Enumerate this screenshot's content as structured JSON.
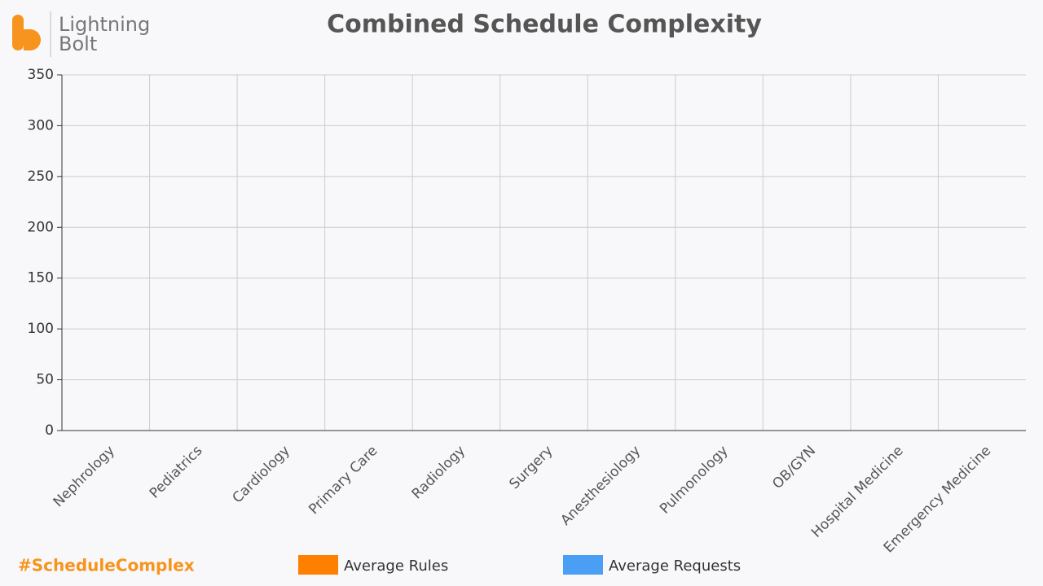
{
  "chart_data": {
    "type": "bar",
    "title": "Combined Schedule Complexity",
    "logo_lines": [
      "Lightning",
      "Bolt"
    ],
    "annotation": "#ScheduleComplex",
    "categories": [
      "Nephrology",
      "Pediatrics",
      "Cardiology",
      "Primary Care",
      "Radiology",
      "Surgery",
      "Anesthesiology",
      "Pulmonology",
      "OB/GYN",
      "Hospital Medicine",
      "Emergency Medicine"
    ],
    "series": [
      {
        "name": "Average Rules",
        "color": "#ff8000",
        "values": [
          0,
          0,
          0,
          0,
          0,
          0,
          0,
          0,
          0,
          0,
          0
        ]
      },
      {
        "name": "Average Requests",
        "color": "#4a9ff5",
        "values": [
          0,
          0,
          0,
          0,
          0,
          0,
          0,
          0,
          0,
          0,
          0
        ]
      }
    ],
    "ylim": [
      0,
      350
    ],
    "yticks": [
      0,
      50,
      100,
      150,
      200,
      250,
      300,
      350
    ],
    "grid": true
  }
}
